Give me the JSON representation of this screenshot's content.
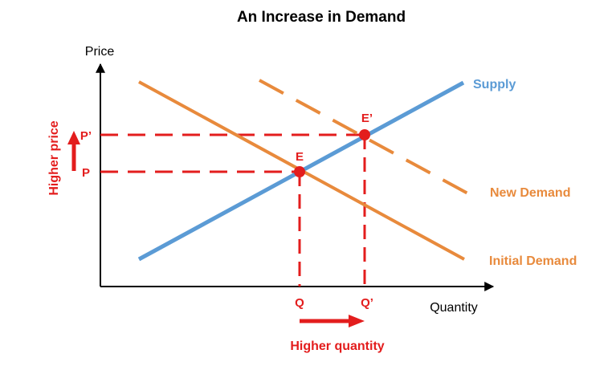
{
  "title": "An Increase in Demand",
  "axes": {
    "y_label": "Price",
    "x_label": "Quantity"
  },
  "curves": {
    "supply_label": "Supply",
    "new_demand_label": "New Demand",
    "initial_demand_label": "Initial Demand"
  },
  "points": {
    "initial_equilibrium": "E",
    "new_equilibrium": "E’"
  },
  "ticks": {
    "initial_price": "P",
    "new_price": "P’",
    "initial_quantity": "Q",
    "new_quantity": "Q’"
  },
  "changes": {
    "price_change": "Higher price",
    "quantity_change": "Higher quantity"
  },
  "colors": {
    "supply": "#5b9bd5",
    "demand": "#e88a3c",
    "equilibrium": "#e31d1d",
    "axis": "#000000",
    "text": "#000000"
  }
}
